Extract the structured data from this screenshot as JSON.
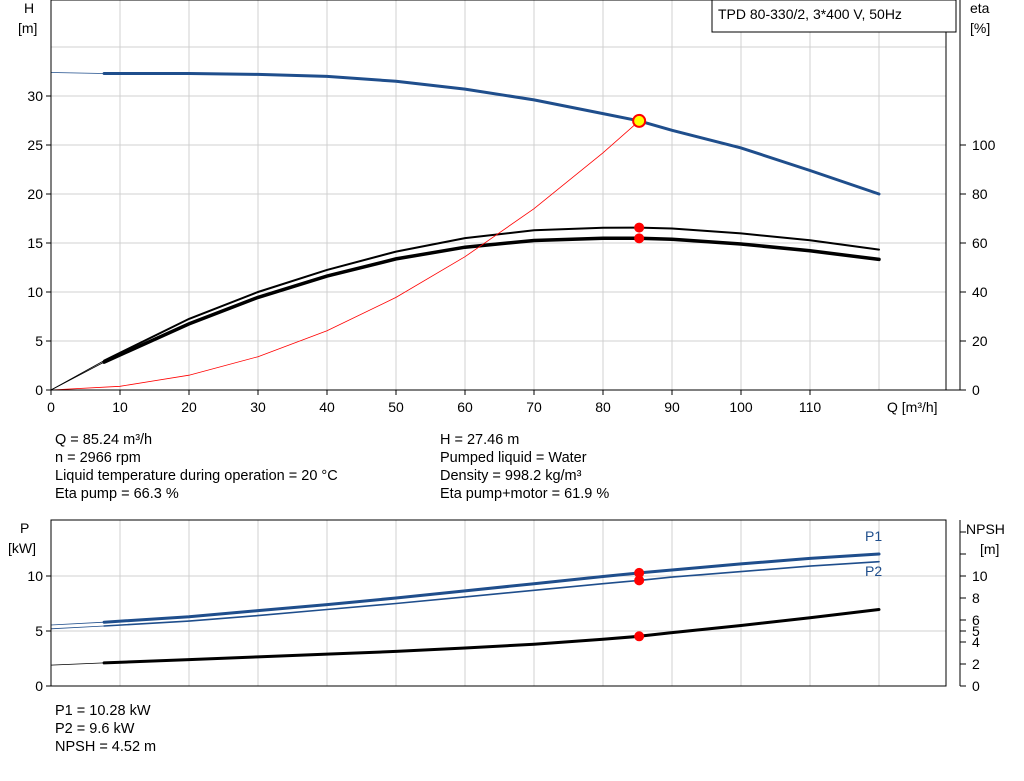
{
  "legend_box": "TPD 80-330/2, 3*400 V, 50Hz",
  "top_chart": {
    "ylabel_left": [
      "H",
      "[m]"
    ],
    "ylabel_right": [
      "eta",
      "[%]"
    ],
    "xlabel": "Q [m³/h]",
    "x_ticks": [
      "0",
      "10",
      "20",
      "30",
      "40",
      "50",
      "60",
      "70",
      "80",
      "90",
      "100",
      "110"
    ],
    "y_left_ticks": [
      "0",
      "5",
      "10",
      "15",
      "20",
      "25",
      "30"
    ],
    "y_right_ticks": [
      "0",
      "20",
      "40",
      "60",
      "80",
      "100"
    ]
  },
  "info_left": [
    "Q = 85.24 m³/h",
    "n = 2966 rpm",
    "Liquid temperature during operation = 20 °C",
    "Eta pump = 66.3 %"
  ],
  "info_right": [
    "H = 27.46 m",
    "Pumped liquid = Water",
    "Density = 998.2 kg/m³",
    "Eta pump+motor = 61.9 %"
  ],
  "bottom_chart": {
    "ylabel_left": [
      "P",
      "[kW]"
    ],
    "ylabel_right": [
      "NPSH",
      "[m]"
    ],
    "y_left_ticks": [
      "0",
      "5",
      "10"
    ],
    "y_right_ticks": [
      "0",
      "2",
      "4",
      "5",
      "6",
      "8",
      "10"
    ],
    "series_labels": [
      "P1",
      "P2"
    ]
  },
  "info_bottom": [
    "P1 = 10.28 kW",
    "P2 = 9.6 kW",
    "NPSH = 4.52 m"
  ],
  "colors": {
    "head": "#1f4e8c",
    "eta": "#000000",
    "system": "#ff0000",
    "duty_point": "#ff0000",
    "duty_point_fill": "#ffff00",
    "grid": "#d0d0d0"
  },
  "chart_data": [
    {
      "type": "line",
      "x_range": [
        0,
        130
      ],
      "y_left_range": [
        0,
        35
      ],
      "y_right_range": [
        0,
        140
      ],
      "grid": true,
      "series": [
        {
          "key": "head",
          "axis": "left",
          "x": [
            0,
            7.7,
            20,
            30,
            40,
            50,
            60,
            70,
            80,
            85.24,
            90,
            100,
            110,
            120
          ],
          "y": [
            32.4,
            32.3,
            32.3,
            32.2,
            32.0,
            31.5,
            30.7,
            29.6,
            28.2,
            27.46,
            26.5,
            24.7,
            22.4,
            20.0
          ]
        },
        {
          "key": "eta_pump",
          "axis": "right",
          "x": [
            0,
            7.7,
            20,
            30,
            40,
            50,
            60,
            70,
            80,
            85.24,
            90,
            100,
            110,
            120
          ],
          "y": [
            0,
            12.0,
            29.0,
            40.0,
            49.0,
            56.5,
            62.0,
            65.2,
            66.2,
            66.3,
            65.9,
            63.9,
            61.1,
            57.3
          ]
        },
        {
          "key": "eta_pump_motor",
          "axis": "right",
          "x": [
            0,
            7.7,
            20,
            30,
            40,
            50,
            60,
            70,
            80,
            85.24,
            90,
            100,
            110,
            120
          ],
          "y": [
            0,
            11.4,
            27.0,
            37.8,
            46.5,
            53.5,
            58.3,
            61.0,
            61.9,
            61.9,
            61.5,
            59.6,
            56.8,
            53.3
          ]
        },
        {
          "key": "system",
          "axis": "left",
          "x": [
            0,
            10,
            20,
            30,
            40,
            50,
            60,
            70,
            80,
            85.24
          ],
          "y": [
            0,
            0.38,
            1.51,
            3.4,
            6.05,
            9.45,
            13.6,
            18.5,
            24.2,
            27.46
          ]
        }
      ],
      "duty_points": [
        {
          "x": 85.24,
          "y": 27.46,
          "axis": "left",
          "style": "yellow"
        },
        {
          "x": 85.24,
          "y": 66.3,
          "axis": "right",
          "style": "red"
        },
        {
          "x": 85.24,
          "y": 61.9,
          "axis": "right",
          "style": "red"
        }
      ]
    },
    {
      "type": "line",
      "x_range": [
        0,
        130
      ],
      "y_left_range": [
        0,
        14.5
      ],
      "y_right_range": [
        0,
        14.5
      ],
      "grid": true,
      "series": [
        {
          "key": "P1",
          "axis": "left",
          "x": [
            0,
            7.7,
            20,
            30,
            40,
            50,
            60,
            70,
            80,
            85.24,
            90,
            100,
            110,
            120
          ],
          "y": [
            5.55,
            5.8,
            6.3,
            6.85,
            7.4,
            8.0,
            8.65,
            9.3,
            9.95,
            10.28,
            10.55,
            11.1,
            11.6,
            12.0
          ]
        },
        {
          "key": "P2",
          "axis": "left",
          "x": [
            0,
            7.7,
            20,
            30,
            40,
            50,
            60,
            70,
            80,
            85.24,
            90,
            100,
            110,
            120
          ],
          "y": [
            5.2,
            5.45,
            5.9,
            6.4,
            6.95,
            7.5,
            8.1,
            8.7,
            9.3,
            9.6,
            9.9,
            10.4,
            10.9,
            11.3
          ]
        },
        {
          "key": "NPSH",
          "axis": "right",
          "x": [
            0,
            7.7,
            20,
            30,
            40,
            50,
            60,
            70,
            80,
            85.24,
            90,
            100,
            110,
            120
          ],
          "y": [
            1.9,
            2.1,
            2.4,
            2.65,
            2.9,
            3.15,
            3.45,
            3.8,
            4.25,
            4.52,
            4.85,
            5.5,
            6.2,
            6.95
          ]
        }
      ],
      "duty_points": [
        {
          "x": 85.24,
          "y": 10.28,
          "axis": "left",
          "style": "red"
        },
        {
          "x": 85.24,
          "y": 9.6,
          "axis": "left",
          "style": "red"
        },
        {
          "x": 85.24,
          "y": 4.52,
          "axis": "right",
          "style": "red"
        }
      ]
    }
  ]
}
